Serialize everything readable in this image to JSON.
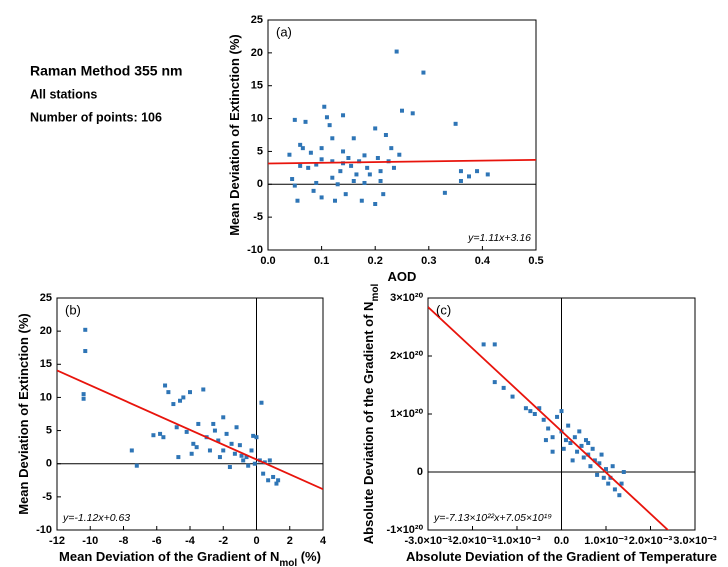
{
  "caption": {
    "method": "Raman Method  355 nm",
    "stations": "All stations",
    "points": "Number of points: 106"
  },
  "chart_data": [
    {
      "type": "scatter",
      "panel_label": "(a)",
      "xlabel": [
        {
          "text": "AOD"
        }
      ],
      "ylabel": [
        {
          "text": "Mean Deviation of Extinction (%)"
        }
      ],
      "xlim": [
        0,
        0.5
      ],
      "ylim": [
        -10,
        25
      ],
      "xticks": [
        {
          "value": 0,
          "label": "0.0"
        },
        0.1,
        0.2,
        0.3,
        0.4,
        0.5
      ],
      "yticks": [
        -10,
        -5,
        0,
        5,
        10,
        15,
        20,
        25
      ],
      "zero_lines": [
        "y"
      ],
      "color": "#2e75b6",
      "fit_color": "#e8140c",
      "fit": {
        "slope": 1.11,
        "intercept": 3.16
      },
      "annotation": "y=1.11x+3.16",
      "annotation_corner": "lower-right",
      "x": [
        0.04,
        0.045,
        0.05,
        0.055,
        0.05,
        0.06,
        0.065,
        0.07,
        0.075,
        0.08,
        0.085,
        0.09,
        0.1,
        0.1,
        0.105,
        0.11,
        0.115,
        0.12,
        0.12,
        0.125,
        0.13,
        0.135,
        0.14,
        0.14,
        0.145,
        0.15,
        0.155,
        0.16,
        0.16,
        0.165,
        0.17,
        0.175,
        0.18,
        0.185,
        0.19,
        0.2,
        0.2,
        0.205,
        0.21,
        0.21,
        0.215,
        0.22,
        0.225,
        0.23,
        0.235,
        0.24,
        0.245,
        0.25,
        0.27,
        0.29,
        0.33,
        0.35,
        0.36,
        0.36,
        0.375,
        0.39,
        0.41,
        0.12,
        0.1,
        0.14,
        0.18,
        0.09,
        0.06
      ],
      "values": [
        4.5,
        0.8,
        -0.2,
        -2.5,
        9.8,
        6,
        5.5,
        9.5,
        2.5,
        4.8,
        -1,
        3,
        -2,
        5.5,
        11.8,
        10.2,
        9,
        1,
        3.5,
        -2.5,
        0,
        2,
        10.5,
        5,
        -1.5,
        4,
        2.8,
        7,
        0.5,
        1.5,
        3.5,
        -2.5,
        0.2,
        2.5,
        1.5,
        -3,
        8.5,
        4,
        0.5,
        2,
        -1.5,
        7.5,
        3.5,
        5.5,
        2.5,
        20.2,
        4.5,
        11.2,
        10.8,
        17,
        -1.3,
        9.2,
        2,
        0.5,
        1.2,
        2,
        1.5,
        7,
        3.8,
        3.2,
        4.4,
        0.2,
        2.8
      ]
    },
    {
      "type": "scatter",
      "panel_label": "(b)",
      "xlabel": [
        {
          "text": "Mean Deviation of the Gradient of N"
        },
        {
          "text": "mol",
          "sub": true
        },
        {
          "text": " (%)"
        }
      ],
      "ylabel": [
        {
          "text": "Mean Deviation of Extinction (%)"
        }
      ],
      "xlim": [
        -12,
        4
      ],
      "ylim": [
        -10,
        25
      ],
      "xticks": [
        -12,
        -10,
        -8,
        -6,
        -4,
        -2,
        0,
        2,
        4
      ],
      "yticks": [
        -10,
        -5,
        0,
        5,
        10,
        15,
        20,
        25
      ],
      "zero_lines": [
        "x",
        "y"
      ],
      "color": "#2e75b6",
      "fit_color": "#e8140c",
      "fit": {
        "slope": -1.12,
        "intercept": 0.63
      },
      "annotation": "y=-1.12x+0.63",
      "annotation_corner": "lower-left",
      "x": [
        -10.3,
        -10.3,
        -10.4,
        -10.4,
        -7.5,
        -7.2,
        -6.2,
        -5.8,
        -5.5,
        -5.3,
        -5,
        -4.8,
        -4.6,
        -4.4,
        -4.2,
        -4,
        -3.8,
        -3.6,
        -3.5,
        -3.2,
        -3,
        -2.8,
        -2.6,
        -2.5,
        -2.3,
        -2,
        -2,
        -1.8,
        -1.5,
        -1.3,
        -1.2,
        -1,
        -0.8,
        -0.6,
        -0.5,
        -0.3,
        -0.2,
        -0.1,
        0,
        0.2,
        0.3,
        0.4,
        0.5,
        0.7,
        0.8,
        1,
        1.2,
        1.3,
        -5.6,
        -4.7,
        -3.9,
        -2.2,
        -1.6,
        -0.9
      ],
      "values": [
        20.2,
        17,
        10.5,
        9.8,
        2,
        -0.3,
        4.3,
        4.5,
        11.8,
        10.8,
        9,
        5.5,
        9.5,
        10,
        4.8,
        10.8,
        3,
        2.5,
        6,
        11.2,
        4,
        2,
        6,
        5,
        3.5,
        2,
        7,
        4.5,
        3,
        1.5,
        5.5,
        2.8,
        0.5,
        1,
        -0.3,
        2,
        4.2,
        0,
        4,
        0.5,
        9.2,
        -1.5,
        0.2,
        -2.5,
        0.5,
        -2,
        -3,
        -2.5,
        4,
        1,
        1.5,
        1,
        -0.5,
        1.2
      ]
    },
    {
      "type": "scatter",
      "panel_label": "(c)",
      "xlabel": [
        {
          "text": "Absolute Deviation of the Gradient of Temperature"
        }
      ],
      "ylabel": [
        {
          "text": "Absolute Deviation of the Gradient of N"
        },
        {
          "text": "mol",
          "sub": true
        }
      ],
      "xlim": [
        -0.003,
        0.003
      ],
      "ylim": [
        -1e+20,
        3e+20
      ],
      "xticks": [
        {
          "value": -0.003,
          "label": "-3.0×10⁻³"
        },
        {
          "value": -0.002,
          "label": "-2.0×10⁻³"
        },
        {
          "value": -0.001,
          "label": "-1.0×10⁻³"
        },
        {
          "value": 0,
          "label": "0.0"
        },
        {
          "value": 0.001,
          "label": "1.0×10⁻³"
        },
        {
          "value": 0.002,
          "label": "2.0×10⁻³"
        },
        {
          "value": 0.003,
          "label": "3.0×10⁻³"
        }
      ],
      "yticks": [
        {
          "value": -1e+20,
          "label": "-1×10²⁰"
        },
        0,
        {
          "value": 1e+20,
          "label": "1×10²⁰"
        },
        {
          "value": 2e+20,
          "label": "2×10²⁰"
        },
        {
          "value": 3e+20,
          "label": "3×10²⁰"
        }
      ],
      "zero_lines": [
        "x",
        "y"
      ],
      "color": "#2e75b6",
      "fit_color": "#e8140c",
      "fit": {
        "slope": -7.13e+22,
        "intercept": 7.05e+19
      },
      "annotation": "y=-7.13×10²²x+7.05×10¹⁹",
      "annotation_corner": "lower-left",
      "x": [
        -0.00175,
        -0.0015,
        -0.0015,
        -0.0013,
        -0.0011,
        -0.0008,
        -0.0007,
        -0.0006,
        -0.0005,
        -0.0004,
        -0.0003,
        -0.0002,
        -0.0001,
        0,
        0,
        0.0001,
        0.00015,
        0.0002,
        0.0003,
        0.00035,
        0.0004,
        0.00045,
        0.0005,
        0.00055,
        0.0006,
        0.00065,
        0.0007,
        0.00075,
        0.0008,
        0.00085,
        0.0009,
        0.00095,
        0.001,
        0.00105,
        0.0011,
        0.00115,
        0.0012,
        0.0013,
        0.00135,
        0.0014,
        -0.0002,
        5e-05,
        0.00025,
        0.0006,
        -0.00035
      ],
      "values": [
        2.2e+20,
        2.2e+20,
        1.55e+20,
        1.45e+20,
        1.3e+20,
        1.1e+20,
        1.05e+20,
        1e+20,
        1.1e+20,
        9e+19,
        7.5e+19,
        6e+19,
        9.5e+19,
        1.05e+20,
        7e+19,
        5.5e+19,
        8e+19,
        5e+19,
        6e+19,
        3.5e+19,
        7e+19,
        4.5e+19,
        2.5e+19,
        5.5e+19,
        3e+19,
        1e+19,
        4e+19,
        2e+19,
        -5e+18,
        1.5e+19,
        3e+19,
        -1e+19,
        5e+18,
        -2e+19,
        -1e+19,
        1e+19,
        -3e+19,
        -4e+19,
        -2e+19,
        0,
        3.5e+19,
        4e+19,
        2e+19,
        5e+19,
        5.5e+19
      ]
    }
  ]
}
